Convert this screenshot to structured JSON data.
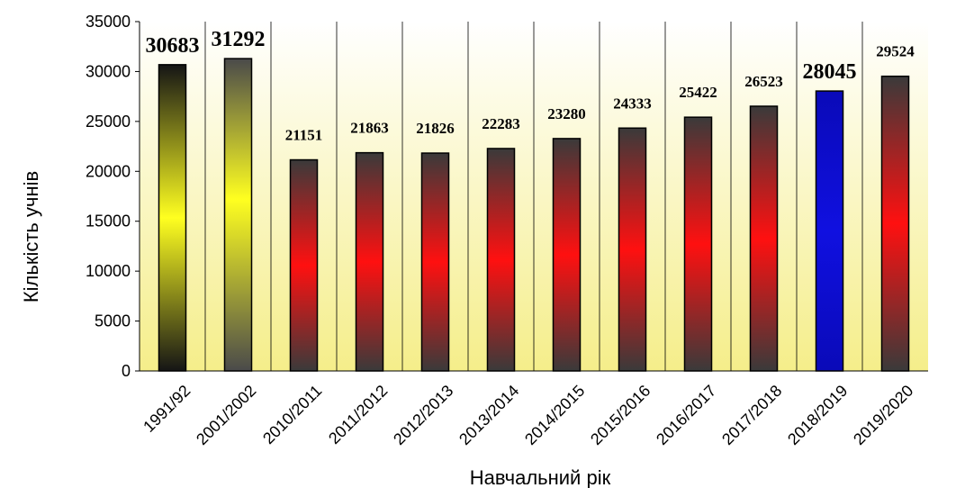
{
  "chart_data": {
    "type": "bar",
    "title": "",
    "xlabel": "Навчальний рік",
    "ylabel": "Кількість учнів",
    "ylim": [
      0,
      35000
    ],
    "yticks": [
      0,
      5000,
      10000,
      15000,
      20000,
      25000,
      30000,
      35000
    ],
    "grid": "vertical category separators",
    "categories": [
      "1991/92",
      "2001/2002",
      "2010/2011",
      "2011/2012",
      "2012/2013",
      "2013/2014",
      "2014/2015",
      "2015/2016",
      "2016/2017",
      "2017/2018",
      "2018/2019",
      "2019/2020"
    ],
    "values": [
      30683,
      31292,
      21151,
      21863,
      21826,
      22283,
      23280,
      24333,
      25422,
      26523,
      28045,
      29524
    ],
    "data_labels": [
      "30683",
      "31292",
      "21151",
      "21863",
      "21826",
      "22283",
      "23280",
      "24333",
      "25422",
      "26523",
      "28045",
      "29524"
    ],
    "bar_styles": [
      "yellow",
      "yellow",
      "red",
      "red",
      "red",
      "red",
      "red",
      "red",
      "red",
      "red",
      "blue",
      "red"
    ],
    "label_emphasis": [
      "large",
      "large",
      "normal",
      "normal",
      "normal",
      "normal",
      "normal",
      "normal",
      "normal",
      "normal",
      "large",
      "normal"
    ]
  },
  "colors": {
    "plot_top": "#ffffff",
    "plot_bottom": "#f5ee8a",
    "bar_red_mid": "#ff1010",
    "bar_red_end": "#3a3a3a",
    "bar_yellow_mid": "#ffff20",
    "bar_yellow_end": "#151515",
    "bar_blue": "#0808d0"
  }
}
